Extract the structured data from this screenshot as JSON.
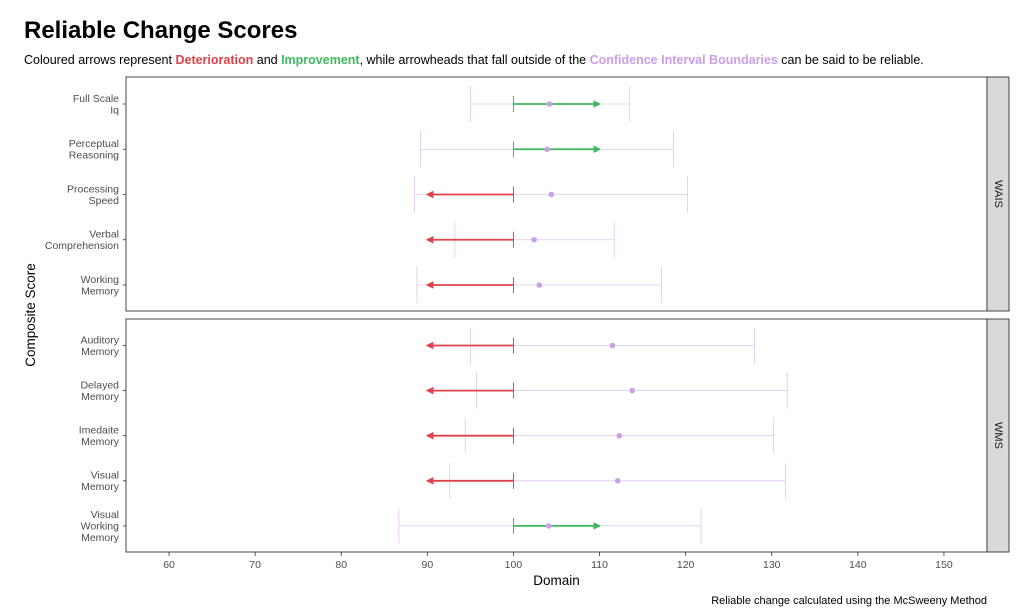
{
  "subtitle": {
    "prefix": "Coloured arrows represent ",
    "deterioration": "Deterioration",
    "mid1": " and ",
    "improvement": "Improvement",
    "mid2": ", while arrowheads that fall outside of the ",
    "ci": "Confidence Interval Boundaries",
    "suffix": " can be said to be reliable."
  },
  "colors": {
    "deterioration": "#e0424b",
    "improvement": "#3dba5c",
    "ci": "#cc9ee8",
    "strip_bg": "#d9d9d9",
    "panel_border": "#333333"
  },
  "chart_data": {
    "type": "faceted-arrow-interval",
    "title": "Reliable Change Scores",
    "xlabel": "Domain",
    "ylabel": "Composite Score",
    "caption": "Reliable change calculated using the McSweeny Method",
    "xlim": [
      55,
      155
    ],
    "xticks": [
      60,
      70,
      80,
      90,
      100,
      110,
      120,
      130,
      140,
      150
    ],
    "grid": false,
    "facets": [
      {
        "name": "WAIS",
        "rows": [
          {
            "label": [
              "Full Scale",
              "Iq"
            ],
            "from": 100,
            "to": 110,
            "direction": "Improvement",
            "point": 104.2,
            "ci_low": 95.0,
            "ci_high": 113.5
          },
          {
            "label": [
              "Perceptual",
              "Reasoning"
            ],
            "from": 100,
            "to": 110,
            "direction": "Improvement",
            "point": 103.9,
            "ci_low": 89.2,
            "ci_high": 118.6
          },
          {
            "label": [
              "Processing",
              "Speed"
            ],
            "from": 100,
            "to": 90,
            "direction": "Deterioration",
            "point": 104.4,
            "ci_low": 88.5,
            "ci_high": 120.2
          },
          {
            "label": [
              "Verbal",
              "Comprehension"
            ],
            "from": 100,
            "to": 90,
            "direction": "Deterioration",
            "point": 102.4,
            "ci_low": 93.2,
            "ci_high": 111.7
          },
          {
            "label": [
              "Working",
              "Memory"
            ],
            "from": 100,
            "to": 90,
            "direction": "Deterioration",
            "point": 103.0,
            "ci_low": 88.8,
            "ci_high": 117.2
          }
        ]
      },
      {
        "name": "WMS",
        "rows": [
          {
            "label": [
              "Auditory",
              "Memory"
            ],
            "from": 100,
            "to": 90,
            "direction": "Deterioration",
            "point": 111.5,
            "ci_low": 95.0,
            "ci_high": 128.0
          },
          {
            "label": [
              "Delayed",
              "Memory"
            ],
            "from": 100,
            "to": 90,
            "direction": "Deterioration",
            "point": 113.8,
            "ci_low": 95.7,
            "ci_high": 131.8
          },
          {
            "label": [
              "Imedaite",
              "Memory"
            ],
            "from": 100,
            "to": 90,
            "direction": "Deterioration",
            "point": 112.3,
            "ci_low": 94.4,
            "ci_high": 130.2
          },
          {
            "label": [
              "Visual",
              "Memory"
            ],
            "from": 100,
            "to": 90,
            "direction": "Deterioration",
            "point": 112.1,
            "ci_low": 92.6,
            "ci_high": 131.6
          },
          {
            "label": [
              "Visual",
              "Working",
              "Memory"
            ],
            "from": 100,
            "to": 110,
            "direction": "Improvement",
            "point": 104.1,
            "ci_low": 86.7,
            "ci_high": 121.8
          }
        ]
      }
    ]
  }
}
